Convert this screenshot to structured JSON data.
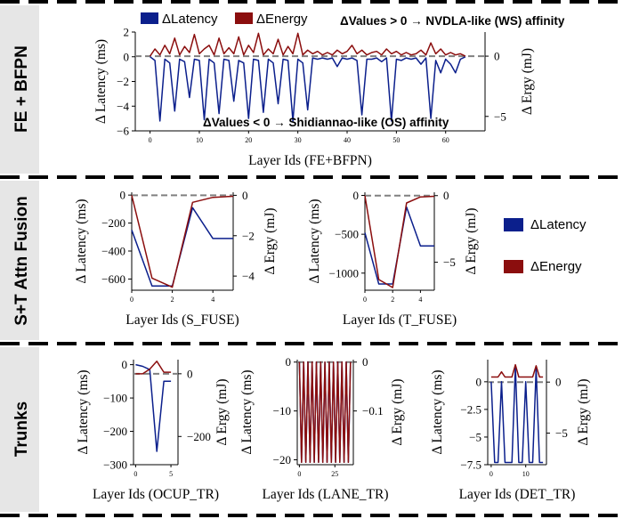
{
  "colors": {
    "latency": "#0b1f8c",
    "energy": "#8b0e0e",
    "zero": "#808080",
    "axis": "#000000"
  },
  "sections": [
    {
      "label": "FE + BFPN"
    },
    {
      "label": "S+T Attn Fusion"
    },
    {
      "label": "Trunks"
    }
  ],
  "legend": {
    "latency": "ΔLatency",
    "energy": "ΔEnergy"
  },
  "annotations": {
    "ws": "ΔValues > 0 → NVDLA-like (WS) affinity",
    "os": "ΔValues < 0 → Shidiannao-like (OS)  affinity"
  },
  "chart_data": [
    {
      "id": "fe",
      "type": "line",
      "xlabel": "Layer Ids (FE+BFPN)",
      "ylabel_left": "Δ Latency (ms)",
      "ylabel_right": "Δ Ergy (mJ)",
      "xlim": [
        -3,
        68
      ],
      "ylim_left": [
        -6,
        2
      ],
      "ylim_right": [
        -6.2,
        2.0
      ],
      "xticks": [
        0,
        10,
        20,
        30,
        40,
        50,
        60
      ],
      "yticks_left": [
        2,
        0,
        -2,
        -4,
        -6
      ],
      "yticks_right": [
        0,
        -5
      ],
      "series": [
        {
          "name": "ΔLatency",
          "axis": "left",
          "color": "#0b1f8c",
          "x": [
            0,
            1,
            2,
            3,
            4,
            5,
            6,
            7,
            8,
            9,
            10,
            11,
            12,
            13,
            14,
            15,
            16,
            17,
            18,
            19,
            20,
            21,
            22,
            23,
            24,
            25,
            26,
            27,
            28,
            29,
            30,
            31,
            32,
            33,
            34,
            35,
            36,
            37,
            38,
            39,
            40,
            41,
            42,
            43,
            44,
            45,
            46,
            47,
            48,
            49,
            50,
            51,
            52,
            53,
            54,
            55,
            56,
            57,
            58,
            59,
            60,
            61,
            62,
            63,
            64
          ],
          "y": [
            0,
            -0.3,
            -5.2,
            -0.2,
            -0.5,
            -4.4,
            -0.2,
            -0.4,
            -3.3,
            -0.2,
            -0.3,
            -5.1,
            -0.2,
            -0.5,
            -4.6,
            -0.2,
            -0.3,
            -3.6,
            -0.3,
            -0.5,
            -5.0,
            -0.2,
            -0.3,
            -4.5,
            -0.2,
            -0.5,
            -3.8,
            -0.2,
            -0.3,
            -5.2,
            -0.2,
            -0.5,
            -4.3,
            -0.1,
            -0.2,
            -0.1,
            -0.2,
            -0.1,
            -0.8,
            -0.1,
            -0.2,
            -0.1,
            -0.3,
            -4.7,
            -0.2,
            -0.2,
            -0.1,
            -0.4,
            -0.1,
            -5.2,
            -0.2,
            -0.3,
            -0.1,
            -0.2,
            -0.1,
            -0.6,
            -0.1,
            -5.0,
            -0.3,
            -1.3,
            -0.2,
            -0.6,
            -1.3,
            -0.2,
            0
          ]
        },
        {
          "name": "ΔEnergy",
          "axis": "right",
          "color": "#8b0e0e",
          "x": [
            0,
            1,
            2,
            3,
            4,
            5,
            6,
            7,
            8,
            9,
            10,
            11,
            12,
            13,
            14,
            15,
            16,
            17,
            18,
            19,
            20,
            21,
            22,
            23,
            24,
            25,
            26,
            27,
            28,
            29,
            30,
            31,
            32,
            33,
            34,
            35,
            36,
            37,
            38,
            39,
            40,
            41,
            42,
            43,
            44,
            45,
            46,
            47,
            48,
            49,
            50,
            51,
            52,
            53,
            54,
            55,
            56,
            57,
            58,
            59,
            60,
            61,
            62,
            63,
            64
          ],
          "y": [
            0,
            0.6,
            0.1,
            0.9,
            0.2,
            1.5,
            0.1,
            0.8,
            0.3,
            1.8,
            0.2,
            0.6,
            0.9,
            0.1,
            1.5,
            0.2,
            0.7,
            0.2,
            1.6,
            0.1,
            0.9,
            0.3,
            1.9,
            0.1,
            0.6,
            0.2,
            1.4,
            0.1,
            0.8,
            0.2,
            1.9,
            0.1,
            0.5,
            0.2,
            0.4,
            0.1,
            0.3,
            0.1,
            0.5,
            0.2,
            0.4,
            0.9,
            0.2,
            0.5,
            0.1,
            0.3,
            0.4,
            0.1,
            0.6,
            0.2,
            0.4,
            0.1,
            0.3,
            0.1,
            0.2,
            0.5,
            0.1,
            1.1,
            0.2,
            0.6,
            0.1,
            0.3,
            0.1,
            0.2,
            0
          ]
        }
      ]
    },
    {
      "id": "s_fuse",
      "type": "line",
      "xlabel": "Layer Ids (S_FUSE)",
      "ylabel_left": "Δ Latency (ms)",
      "ylabel_right": "Δ Ergy (mJ)",
      "xlim": [
        0,
        5
      ],
      "ylim_left": [
        -680,
        20
      ],
      "ylim_right": [
        -4.7,
        0.15
      ],
      "xticks": [
        0,
        2,
        4
      ],
      "yticks_left": [
        0,
        -200,
        -400,
        -600
      ],
      "yticks_right": [
        0,
        -2,
        -4
      ],
      "series": [
        {
          "name": "ΔLatency",
          "axis": "left",
          "color": "#0b1f8c",
          "x": [
            0,
            1,
            2,
            3,
            4,
            5
          ],
          "y": [
            -250,
            -650,
            -650,
            -90,
            -310,
            -310
          ]
        },
        {
          "name": "ΔEnergy",
          "axis": "right",
          "color": "#8b0e0e",
          "x": [
            0,
            1,
            2,
            3,
            4,
            5
          ],
          "y": [
            0,
            -4.1,
            -4.55,
            -0.35,
            -0.1,
            -0.05
          ]
        }
      ]
    },
    {
      "id": "t_fuse",
      "type": "line",
      "xlabel": "Layer Ids (T_FUSE)",
      "ylabel_left": "Δ Latency (ms)",
      "ylabel_right": "Δ Ergy (mJ)",
      "xlim": [
        0,
        5
      ],
      "ylim_left": [
        -1220,
        40
      ],
      "ylim_right": [
        -7.1,
        0.25
      ],
      "xticks": [
        0,
        2,
        4
      ],
      "yticks_left": [
        0,
        -500,
        -1000
      ],
      "yticks_right": [
        0,
        -5
      ],
      "series": [
        {
          "name": "ΔLatency",
          "axis": "left",
          "color": "#0b1f8c",
          "x": [
            0,
            1,
            2,
            3,
            4,
            5
          ],
          "y": [
            -480,
            -1140,
            -1140,
            -150,
            -650,
            -650
          ]
        },
        {
          "name": "ΔEnergy",
          "axis": "right",
          "color": "#8b0e0e",
          "x": [
            0,
            1,
            2,
            3,
            4,
            5
          ],
          "y": [
            0,
            -6.3,
            -6.9,
            -0.55,
            -0.1,
            -0.05
          ]
        }
      ]
    },
    {
      "id": "ocup_tr",
      "type": "line",
      "xlabel": "Layer Ids (OCUP_TR)",
      "ylabel_left": "Δ Latency (ms)",
      "ylabel_right": "Δ Ergy (mJ)",
      "xlim": [
        -0.3,
        6
      ],
      "ylim_left": [
        -300,
        15
      ],
      "ylim_right": [
        -290,
        45
      ],
      "xticks": [
        0,
        5
      ],
      "yticks_left": [
        0,
        -100,
        -200,
        -300
      ],
      "yticks_right": [
        0,
        -200
      ],
      "series": [
        {
          "name": "ΔLatency",
          "axis": "left",
          "color": "#0b1f8c",
          "x": [
            0,
            1,
            2,
            3,
            4,
            5
          ],
          "y": [
            0,
            -5,
            -15,
            -260,
            -50,
            -50
          ]
        },
        {
          "name": "ΔEnergy",
          "axis": "right",
          "color": "#8b0e0e",
          "x": [
            0,
            1,
            2,
            3,
            4,
            5
          ],
          "y": [
            0,
            0,
            15,
            40,
            5,
            5
          ]
        }
      ]
    },
    {
      "id": "lane_tr",
      "type": "line",
      "xlabel": "Layer Ids (LANE_TR)",
      "ylabel_left": "Δ Latency (ms)",
      "ylabel_right": "Δ Ergy (mJ)",
      "xlim": [
        -1.5,
        38
      ],
      "ylim_left": [
        -21,
        0.5
      ],
      "ylim_right": [
        -0.21,
        0.005
      ],
      "xticks": [
        0,
        25
      ],
      "yticks_left": [
        0,
        -10,
        -20
      ],
      "yticks_right": [
        0.0,
        -0.1
      ],
      "series": [
        {
          "name": "ΔLatency",
          "axis": "left",
          "color": "#0b1f8c",
          "x": [
            0,
            1.5,
            3,
            4.5,
            6,
            7.5,
            9,
            10.5,
            12,
            13.5,
            15,
            16.5,
            18,
            19.5,
            21,
            22.5,
            24,
            25.5,
            27,
            28.5,
            30,
            31.5,
            33,
            34.5,
            36
          ],
          "y": [
            0,
            -20.5,
            0,
            -20.5,
            0,
            -20.5,
            0,
            -20.5,
            0,
            -20.5,
            0,
            -20.5,
            0,
            -20.5,
            0,
            -20.5,
            0,
            -20.5,
            0,
            -20.5,
            0,
            -20.5,
            0,
            -20.5,
            0
          ]
        },
        {
          "name": "ΔEnergy",
          "axis": "right",
          "color": "#8b0e0e",
          "x": [
            0,
            1.5,
            3,
            4.5,
            6,
            7.5,
            9,
            10.5,
            12,
            13.5,
            15,
            16.5,
            18,
            19.5,
            21,
            22.5,
            24,
            25.5,
            27,
            28.5,
            30,
            31.5,
            33,
            34.5,
            36
          ],
          "y": [
            0,
            -0.205,
            0,
            -0.205,
            0,
            -0.205,
            0,
            -0.205,
            0,
            -0.205,
            0,
            -0.205,
            0,
            -0.205,
            0,
            -0.205,
            0,
            -0.205,
            0,
            -0.205,
            0,
            -0.205,
            0,
            -0.205,
            0
          ]
        }
      ]
    },
    {
      "id": "det_tr",
      "type": "line",
      "xlabel": "Layer Ids (DET_TR)",
      "ylabel_left": "Δ Latency (ms)",
      "ylabel_right": "Δ Ergy (mJ)",
      "xlim": [
        -1,
        16
      ],
      "ylim_left": [
        -7.5,
        2.0
      ],
      "ylim_right": [
        -8.1,
        2.2
      ],
      "xticks": [
        0,
        10
      ],
      "yticks_left": [
        0.0,
        -2.5,
        -5.0,
        -7.5
      ],
      "yticks_right": [
        0,
        -5
      ],
      "series": [
        {
          "name": "ΔLatency",
          "axis": "left",
          "color": "#0b1f8c",
          "x": [
            0,
            1,
            2,
            3,
            4,
            5,
            6,
            7,
            8,
            9,
            10,
            11,
            12,
            13,
            14,
            15
          ],
          "y": [
            0,
            -7.3,
            -7.3,
            0,
            -7.3,
            -7.3,
            -7.3,
            1.4,
            -7.3,
            -7.3,
            0,
            -7.3,
            -7.3,
            1.2,
            -7.3,
            -7.3
          ]
        },
        {
          "name": "ΔEnergy",
          "axis": "right",
          "color": "#8b0e0e",
          "x": [
            0,
            1,
            2,
            3,
            4,
            5,
            6,
            7,
            8,
            9,
            10,
            11,
            12,
            13,
            14,
            15
          ],
          "y": [
            0.5,
            0.5,
            0.5,
            1.0,
            0.5,
            0.5,
            0.5,
            1.7,
            0.5,
            0.5,
            0.5,
            0.5,
            0.5,
            1.6,
            0.5,
            0.5
          ]
        }
      ]
    }
  ]
}
